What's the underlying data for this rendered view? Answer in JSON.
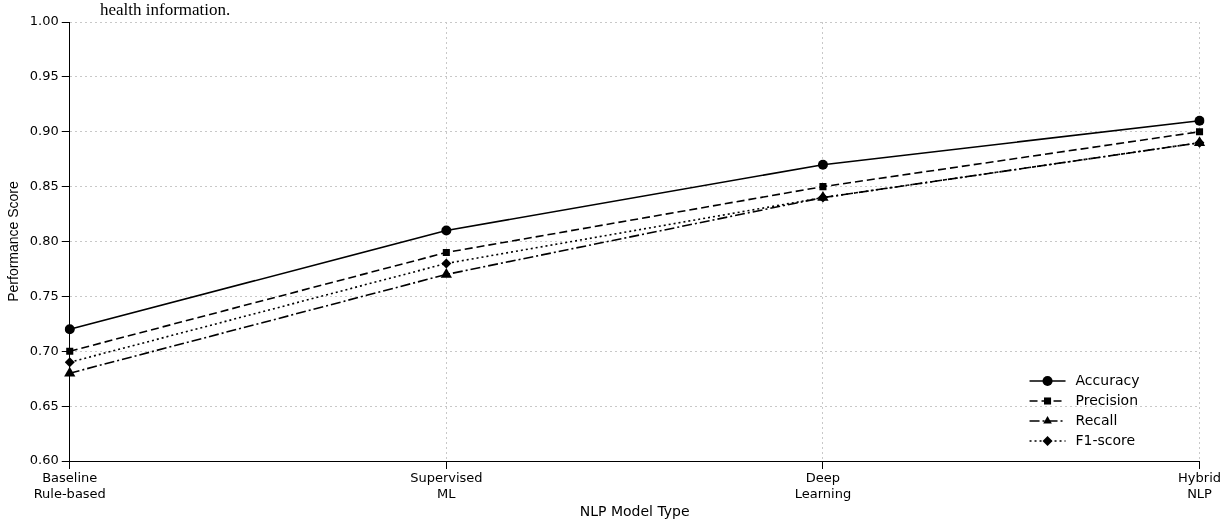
{
  "chart_data": {
    "type": "line",
    "xlabel": "NLP Model Type",
    "ylabel": "Performance Score",
    "annotations": [
      "health information."
    ],
    "categories": [
      "Baseline\nRule-based",
      "Supervised\nML",
      "Deep\nLearning",
      "Hybrid\nNLP"
    ],
    "series": [
      {
        "name": "Accuracy",
        "color": "#000000",
        "marker": "circle",
        "line_style": "solid",
        "values": [
          0.72,
          0.81,
          0.87,
          0.91
        ]
      },
      {
        "name": "Precision",
        "color": "#000000",
        "marker": "square",
        "line_style": "dashed",
        "values": [
          0.7,
          0.79,
          0.85,
          0.9
        ]
      },
      {
        "name": "Recall",
        "color": "#000000",
        "marker": "triangle",
        "line_style": "dashdot",
        "values": [
          0.68,
          0.77,
          0.84,
          0.89
        ]
      },
      {
        "name": "F1-score",
        "color": "#000000",
        "marker": "diamond",
        "line_style": "dotted",
        "values": [
          0.69,
          0.78,
          0.84,
          0.89
        ]
      }
    ],
    "ylim": [
      0.6,
      1.0
    ],
    "yticks": [
      {
        "value": 0.6,
        "label": "0.60"
      },
      0.65,
      {
        "value": 0.7,
        "label": "0.70"
      },
      0.75,
      {
        "value": 0.8,
        "label": "0.80"
      },
      0.85,
      {
        "value": 0.9,
        "label": "0.90"
      },
      0.95,
      {
        "value": 1.0,
        "label": "1.00"
      }
    ],
    "grid": true,
    "legend": "bottom right"
  }
}
